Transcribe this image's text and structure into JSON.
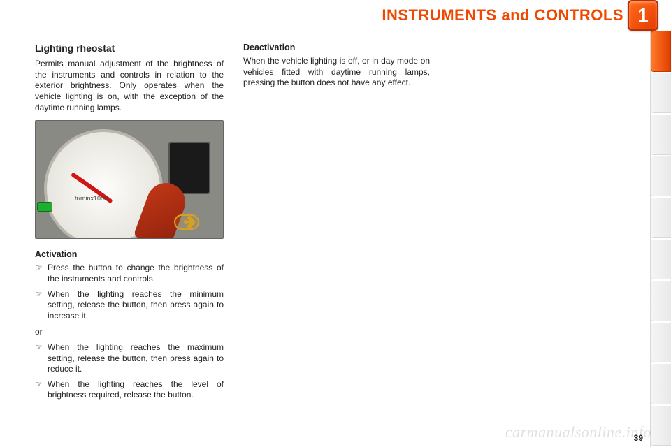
{
  "header": {
    "title": "INSTRUMENTS and CONTROLS",
    "badge": "1",
    "title_color": "#ef4800",
    "badge_bg_start": "#ff6a1a",
    "badge_bg_end": "#e63c00"
  },
  "page_number": "39",
  "watermark": "carmanualsonline.info",
  "right_tabs": {
    "count": 10,
    "active_index": 0,
    "active_color_start": "#ff7a2a",
    "active_color_end": "#e23d00",
    "inactive_color": "#ededed"
  },
  "left_column": {
    "title": "Lighting rheostat",
    "intro": "Permits manual adjustment of the brightness of the instruments and controls in relation to the exterior brightness. Only operates when the vehicle lighting is on, with the exception of the daytime running lamps.",
    "photo": {
      "gauge_label": "tr/minx1000",
      "needle_color": "#d31414",
      "indicator_color": "#1fae2f",
      "icon_color": "#d9a020",
      "background_color": "#8a8a84"
    },
    "activation": {
      "heading": "Activation",
      "bullets_a": [
        "Press the button to change the brightness of the instruments and controls.",
        "When the lighting reaches the minimum setting, release the button, then press again to increase it."
      ],
      "or": "or",
      "bullets_b": [
        "When the lighting reaches the maximum setting, release the button, then press again to reduce it.",
        "When the lighting reaches the level of brightness required, release the button."
      ],
      "marker": "☞"
    }
  },
  "right_column": {
    "heading": "Deactivation",
    "text": "When the vehicle lighting is off, or in day mode on vehicles fitted with daytime running lamps, pressing the button does not have any effect."
  }
}
